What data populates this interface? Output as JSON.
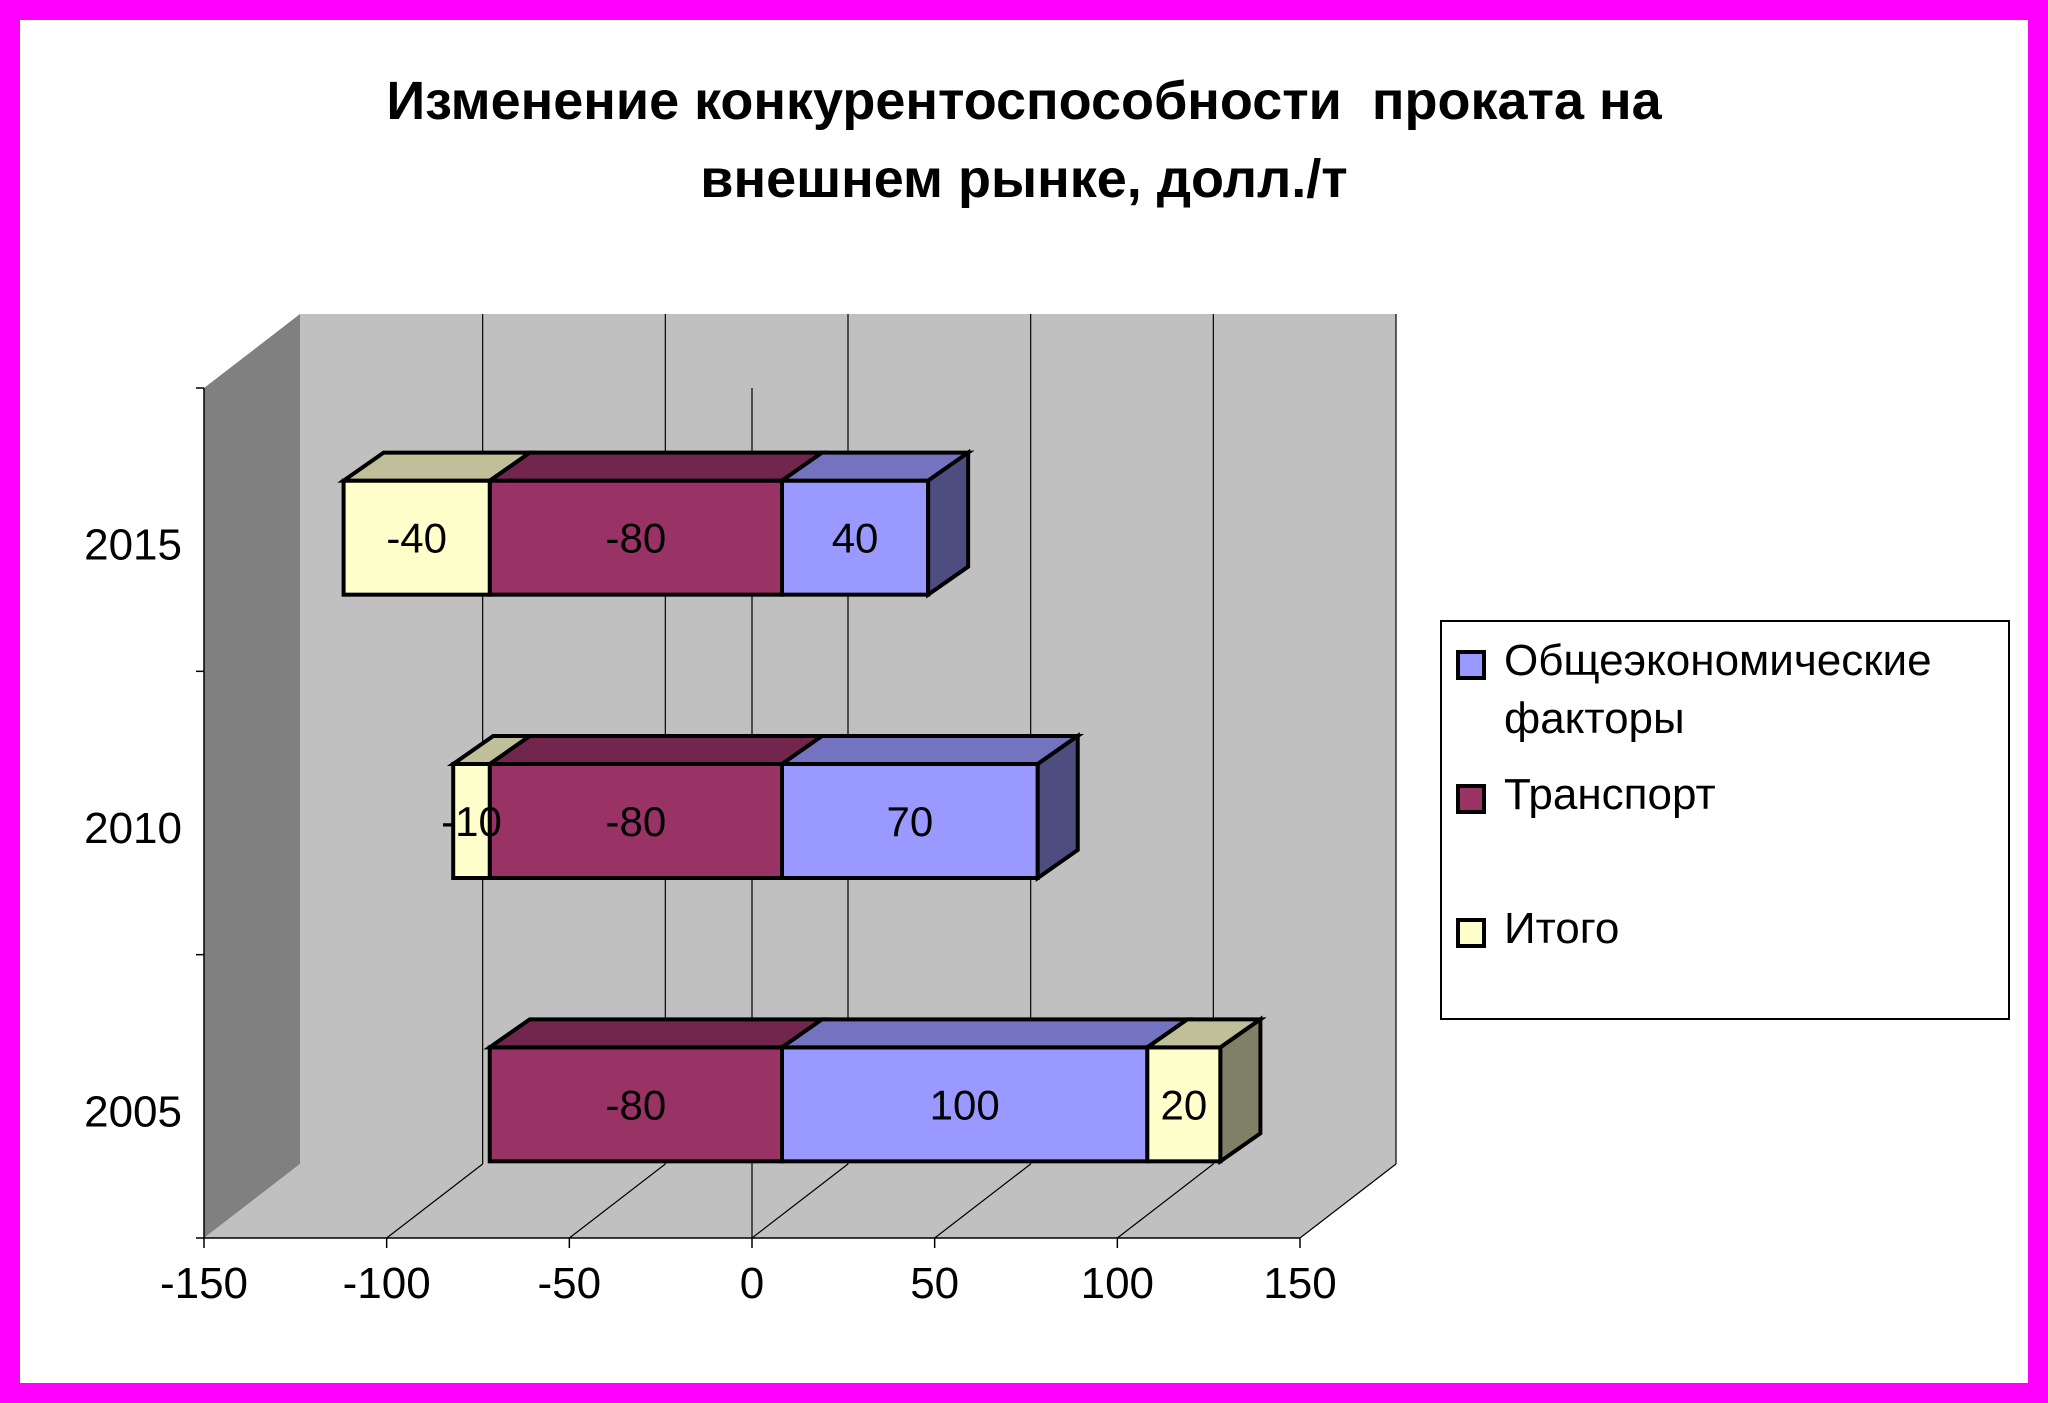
{
  "title": {
    "line1": "Изменение конкурентоспособности  проката на",
    "line2": "внешнем рынке, долл./т"
  },
  "colors": {
    "frame": "#ff00ff",
    "wall": "#c0c0c0",
    "side_wall": "#808080",
    "general": "#9999ff",
    "transport": "#993366",
    "total": "#ffffcc"
  },
  "chart_data": {
    "type": "bar",
    "orientation": "horizontal",
    "stacked": true,
    "three_d": true,
    "categories": [
      "2015",
      "2010",
      "2005"
    ],
    "series": [
      {
        "name": "Общеэкономические факторы",
        "values": [
          40,
          70,
          100
        ]
      },
      {
        "name": "Транспорт",
        "values": [
          -80,
          -80,
          -80
        ]
      },
      {
        "name": "Итого",
        "values": [
          -40,
          -10,
          20
        ]
      }
    ],
    "x_ticks": [
      "-150",
      "-100",
      "-50",
      "0",
      "50",
      "100",
      "150"
    ],
    "xlim": [
      -150,
      150
    ],
    "grid": true,
    "legend_position": "right"
  },
  "legend": {
    "items": [
      {
        "line1": "Общеэкономические",
        "line2": "факторы",
        "color": "#9999ff"
      },
      {
        "line1": "Транспорт",
        "line2": "",
        "color": "#993366"
      },
      {
        "line1": "Итого",
        "line2": "",
        "color": "#ffffcc"
      }
    ]
  }
}
